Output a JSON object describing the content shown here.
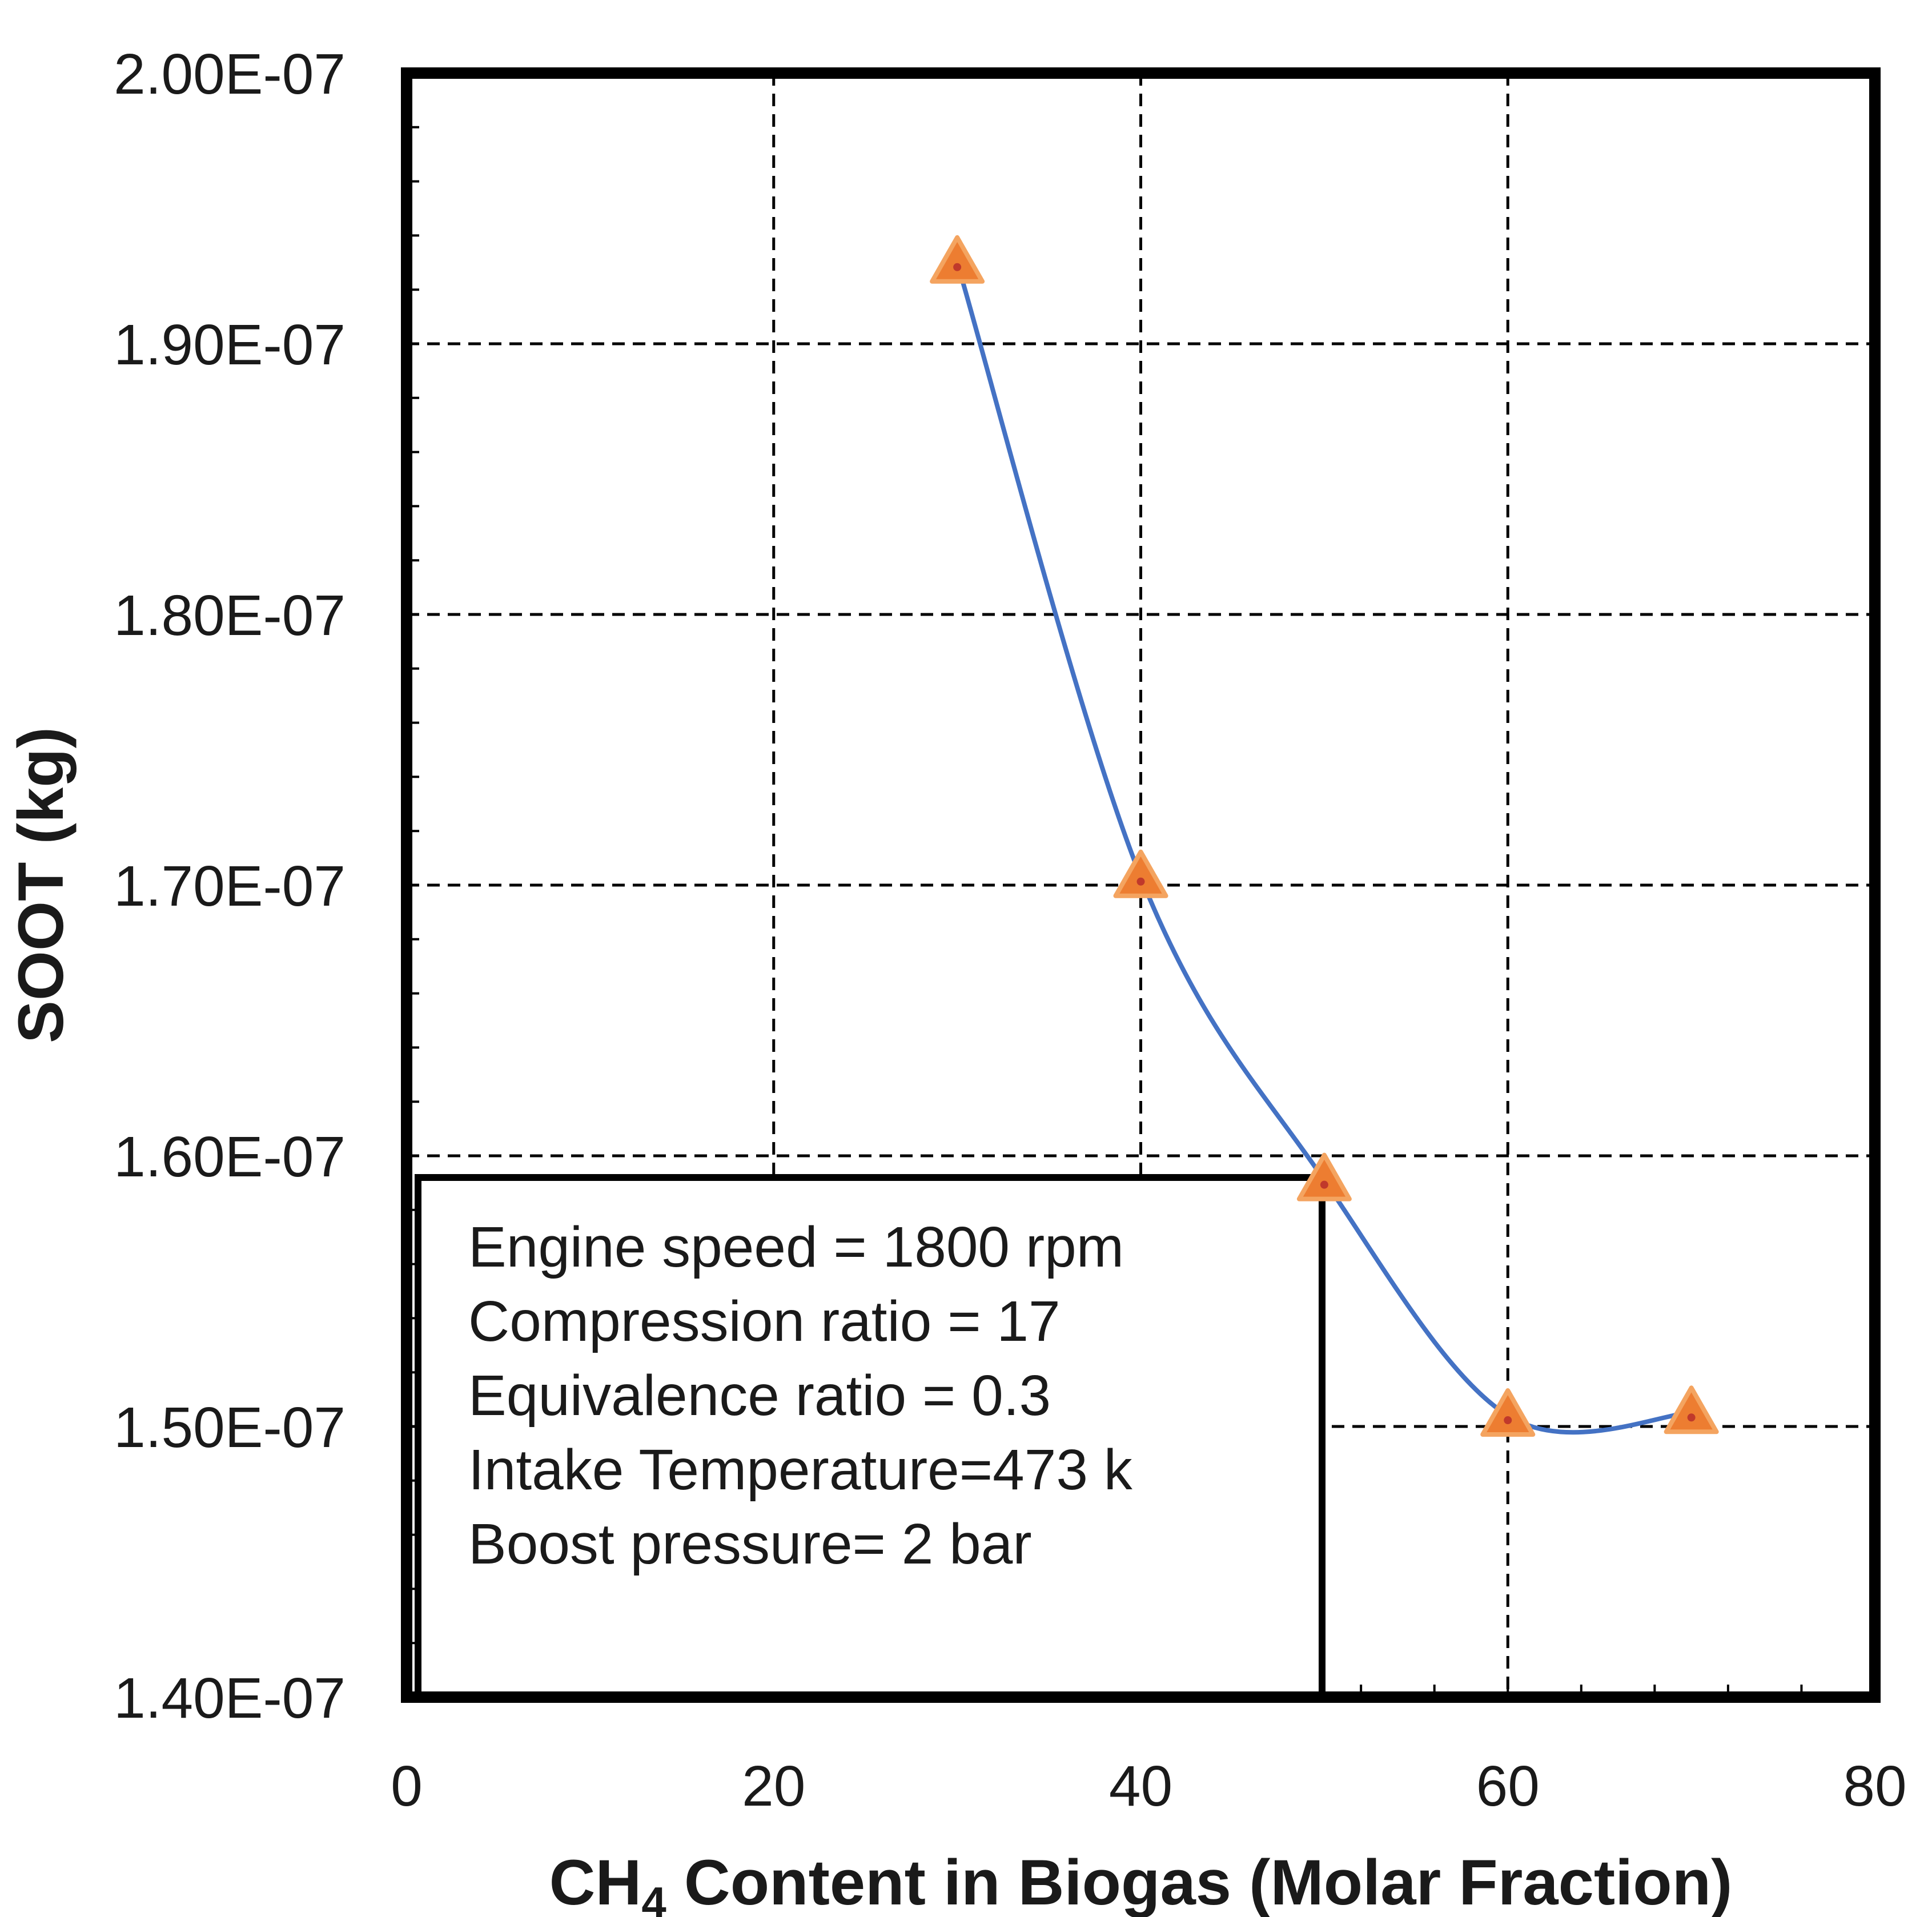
{
  "chart_data": {
    "type": "line",
    "title": "",
    "xlabel_main": "CH",
    "xlabel_sub": "4",
    "xlabel_rest": " Content in Biogas (Molar Fraction)",
    "ylabel": "SOOT (kg)",
    "xlim": [
      0,
      80
    ],
    "ylim": [
      1.4e-07,
      2e-07
    ],
    "x_ticks": [
      0,
      20,
      40,
      60,
      80
    ],
    "y_ticks": [
      1.4e-07,
      1.5e-07,
      1.6e-07,
      1.7e-07,
      1.8e-07,
      1.9e-07,
      2e-07
    ],
    "y_tick_labels": [
      "1.40E-07",
      "1.50E-07",
      "1.60E-07",
      "1.70E-07",
      "1.80E-07",
      "1.90E-07",
      "2.00E-07"
    ],
    "x_tick_labels": [
      "0",
      "20",
      "40",
      "60",
      "80"
    ],
    "grid": true,
    "series": [
      {
        "x": [
          30,
          40,
          50,
          60,
          70
        ],
        "y": [
          1.93e-07,
          1.703e-07,
          1.591e-07,
          1.504e-07,
          1.505e-07
        ],
        "line_color": "#4472c4",
        "marker": "triangle",
        "marker_color": "#ed7d31",
        "marker_edge_color": "#f4a460"
      }
    ],
    "annotation": [
      "Engine speed = 1800 rpm",
      "Compression ratio = 17",
      "Equivalence ratio = 0.3",
      "Intake Temperature=473 k",
      "Boost pressure= 2 bar"
    ]
  }
}
